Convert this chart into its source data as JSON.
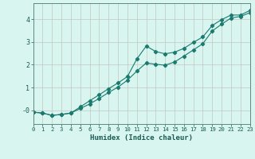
{
  "xlabel": "Humidex (Indice chaleur)",
  "bg_color": "#d8f5f0",
  "grid_color": "#c0c8c0",
  "line_color": "#1a7a6e",
  "xlim": [
    0,
    23
  ],
  "ylim": [
    -0.6,
    4.7
  ],
  "yticks": [
    0,
    1,
    2,
    3,
    4
  ],
  "ytick_labels": [
    "-0",
    "1",
    "2",
    "3",
    "4"
  ],
  "line1_x": [
    0,
    1,
    2,
    3,
    4,
    5,
    6,
    7,
    8,
    9,
    10,
    11,
    12,
    13,
    14,
    15,
    16,
    17,
    18,
    19,
    20,
    21,
    22,
    23
  ],
  "line1_y": [
    -0.08,
    -0.12,
    -0.22,
    -0.18,
    -0.12,
    0.15,
    0.42,
    0.68,
    0.95,
    1.2,
    1.48,
    2.25,
    2.82,
    2.58,
    2.48,
    2.55,
    2.72,
    2.98,
    3.22,
    3.72,
    3.98,
    4.18,
    4.18,
    4.38
  ],
  "line2_x": [
    0,
    1,
    2,
    3,
    4,
    5,
    6,
    7,
    8,
    9,
    10,
    11,
    12,
    13,
    14,
    15,
    16,
    17,
    18,
    19,
    20,
    21,
    22,
    23
  ],
  "line2_y": [
    -0.08,
    -0.12,
    -0.22,
    -0.18,
    -0.12,
    0.08,
    0.28,
    0.52,
    0.78,
    1.02,
    1.32,
    1.72,
    2.08,
    2.02,
    1.98,
    2.12,
    2.38,
    2.65,
    2.92,
    3.48,
    3.78,
    4.05,
    4.12,
    4.28
  ]
}
